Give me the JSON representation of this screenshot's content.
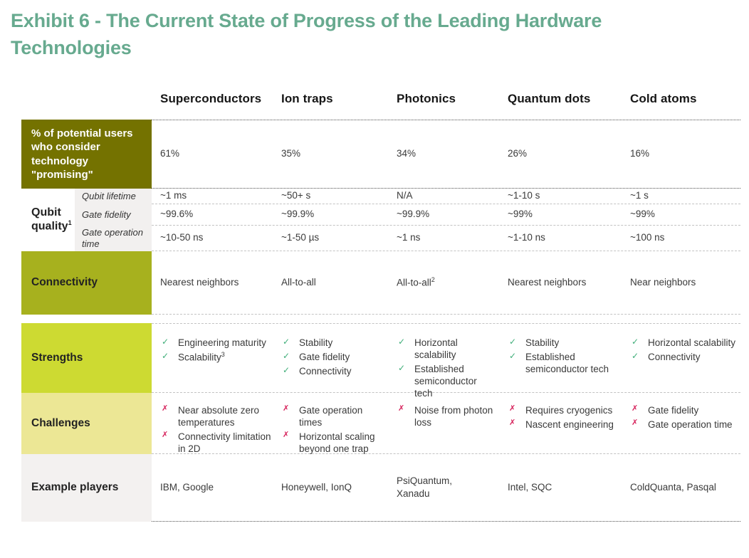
{
  "title": "Exhibit 6 - The Current State of Progress of the Leading Hardware Technologies",
  "columns": [
    "Superconductors",
    "Ion traps",
    "Photonics",
    "Quantum dots",
    "Cold atoms"
  ],
  "icons": {
    "check": "✓",
    "cross": "✗"
  },
  "colors": {
    "title": "#67aa8f",
    "olive": "#747200",
    "green": "#a7b11e",
    "lime": "#cdda32",
    "pale": "#ece795",
    "lightgray": "#f3f1f0",
    "sublabel_gray": "#f2f0ef",
    "check": "#3fae79",
    "cross": "#d6225b"
  },
  "rows": {
    "promising": {
      "label": "% of potential users who consider technology \"promising\"",
      "values": [
        "61%",
        "35%",
        "34%",
        "26%",
        "16%"
      ]
    },
    "qubit_quality": {
      "label": "Qubit quality",
      "label_sup": "1",
      "sub_rows": [
        {
          "label": "Qubit lifetime",
          "values": [
            "~1 ms",
            "~50+ s",
            "N/A",
            "~1-10 s",
            "~1 s"
          ]
        },
        {
          "label": "Gate fidelity",
          "values": [
            "~99.6%",
            "~99.9%",
            "~99.9%",
            "~99%",
            "~99%"
          ]
        },
        {
          "label": "Gate operation time",
          "values": [
            "~10-50 ns",
            "~1-50 µs",
            "~1 ns",
            "~1-10 ns",
            "~100 ns"
          ]
        }
      ]
    },
    "connectivity": {
      "label": "Connectivity",
      "values": [
        {
          "text": "Nearest neighbors",
          "sup": ""
        },
        {
          "text": "All-to-all",
          "sup": ""
        },
        {
          "text": "All-to-all",
          "sup": "2"
        },
        {
          "text": "Nearest neighbors",
          "sup": ""
        },
        {
          "text": "Near neighbors",
          "sup": ""
        }
      ]
    },
    "strengths": {
      "label": "Strengths",
      "cols": [
        {
          "items": [
            {
              "text": "Engineering maturity",
              "sup": ""
            },
            {
              "text": "Scalability",
              "sup": "3"
            }
          ]
        },
        {
          "items": [
            {
              "text": "Stability",
              "sup": ""
            },
            {
              "text": "Gate fidelity",
              "sup": ""
            },
            {
              "text": "Connectivity",
              "sup": ""
            }
          ]
        },
        {
          "items": [
            {
              "text": "Horizontal scalability",
              "sup": ""
            },
            {
              "text": "Established semiconductor tech",
              "sup": ""
            }
          ]
        },
        {
          "items": [
            {
              "text": "Stability",
              "sup": ""
            },
            {
              "text": "Established semiconductor tech",
              "sup": ""
            }
          ]
        },
        {
          "items": [
            {
              "text": "Horizontal scalability",
              "sup": ""
            },
            {
              "text": "Connectivity",
              "sup": ""
            }
          ]
        }
      ]
    },
    "challenges": {
      "label": "Challenges",
      "cols": [
        {
          "items": [
            {
              "text": "Near absolute zero temperatures"
            },
            {
              "text": "Connectivity limitation in 2D"
            }
          ]
        },
        {
          "items": [
            {
              "text": "Gate operation times"
            },
            {
              "text": "Horizontal scaling beyond one trap"
            }
          ]
        },
        {
          "items": [
            {
              "text": "Noise from photon loss"
            }
          ]
        },
        {
          "items": [
            {
              "text": "Requires cryogenics"
            },
            {
              "text": "Nascent engineering"
            }
          ]
        },
        {
          "items": [
            {
              "text": "Gate fidelity"
            },
            {
              "text": "Gate operation time"
            }
          ]
        }
      ]
    },
    "example_players": {
      "label": "Example players",
      "values": [
        "IBM, Google",
        "Honeywell, IonQ",
        "PsiQuantum, Xanadu",
        "Intel, SQC",
        "ColdQuanta, Pasqal"
      ]
    }
  }
}
